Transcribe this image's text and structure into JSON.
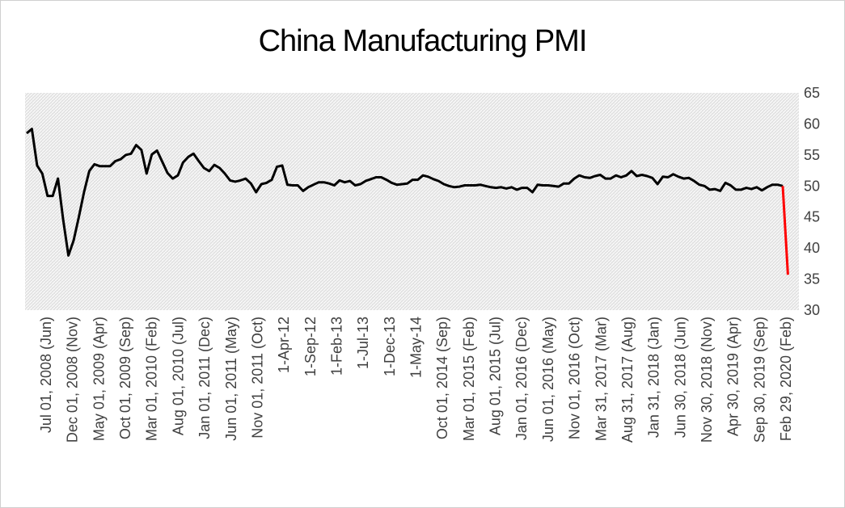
{
  "chart_data": {
    "type": "line",
    "title": "China Manufacturing PMI",
    "xlabel": "",
    "ylabel": "",
    "ylim": [
      30,
      65
    ],
    "y_ticks": [
      65,
      60,
      55,
      50,
      45,
      40,
      35,
      30
    ],
    "y_axis_side": "right",
    "grid": false,
    "legend": "none",
    "x_tick_labels": [
      "Jul 01, 2008 (Jun)",
      "Dec 01, 2008 (Nov)",
      "May 01, 2009 (Apr)",
      "Oct 01, 2009 (Sep)",
      "Mar 01, 2010 (Feb)",
      "Aug 01, 2010 (Jul)",
      "Jan 01, 2011 (Dec)",
      "Jun 01, 2011 (May)",
      "Nov 01, 2011 (Oct)",
      "1-Apr-12",
      "1-Sep-12",
      "1-Feb-13",
      "1-Jul-13",
      "1-Dec-13",
      "1-May-14",
      "Oct 01, 2014 (Sep)",
      "Mar 01, 2015 (Feb)",
      "Aug 01, 2015 (Jul)",
      "Jan 01, 2016 (Dec)",
      "Jun 01, 2016 (May)",
      "Nov 01, 2016 (Oct)",
      "Mar 31, 2017 (Mar)",
      "Aug 31, 2017 (Aug)",
      "Jan 31, 2018 (Jan)",
      "Jun 30, 2018 (Jun)",
      "Nov 30, 2018 (Nov)",
      "Apr 30, 2019 (Apr)",
      "Sep 30, 2019 (Sep)",
      "Feb 29, 2020 (Feb)"
    ],
    "series": [
      {
        "color": "#000000",
        "values": [
          58.5,
          59.2,
          53.3,
          52.0,
          48.4,
          48.4,
          51.2,
          44.6,
          38.8,
          41.2,
          45.0,
          49.0,
          52.4,
          53.5,
          53.2,
          53.2,
          53.2,
          54.0,
          54.3,
          55.0,
          55.2,
          56.6,
          55.8,
          52.0,
          55.1,
          55.7,
          53.9,
          52.1,
          51.2,
          51.7,
          53.8,
          54.7,
          55.2,
          54.0,
          52.9,
          52.4,
          53.4,
          52.9,
          52.0,
          50.9,
          50.7,
          50.9,
          51.2,
          50.4,
          49.0,
          50.3,
          50.5,
          51.0,
          53.1,
          53.3,
          50.2,
          50.1,
          50.1,
          49.2,
          49.8,
          50.2,
          50.6,
          50.6,
          50.4,
          50.1,
          50.9,
          50.6,
          50.8,
          50.1,
          50.3,
          50.8,
          51.1,
          51.4,
          51.4,
          51.0,
          50.5,
          50.2,
          50.3,
          50.4,
          51.0,
          51.0,
          51.7,
          51.5,
          51.1,
          50.8,
          50.3,
          50.0,
          49.8,
          49.9,
          50.1,
          50.1,
          50.1,
          50.2,
          50.0,
          49.8,
          49.7,
          49.8,
          49.6,
          49.8,
          49.4,
          49.7,
          49.7,
          49.0,
          50.2,
          50.1,
          50.1,
          50.0,
          49.9,
          50.4,
          50.4,
          51.2,
          51.7,
          51.4,
          51.3,
          51.6,
          51.8,
          51.2,
          51.2,
          51.7,
          51.4,
          51.7,
          52.4,
          51.6,
          51.8,
          51.6,
          51.3,
          50.3,
          51.5,
          51.4,
          51.9,
          51.5,
          51.2,
          51.3,
          50.8,
          50.2,
          50.0,
          49.4,
          49.5,
          49.2,
          50.5,
          50.1,
          49.4,
          49.4,
          49.7,
          49.5,
          49.8,
          49.3,
          49.8,
          50.2,
          50.2,
          50.0
        ]
      },
      {
        "color": "#ff0000",
        "values": [
          50.0,
          35.7
        ]
      }
    ]
  }
}
